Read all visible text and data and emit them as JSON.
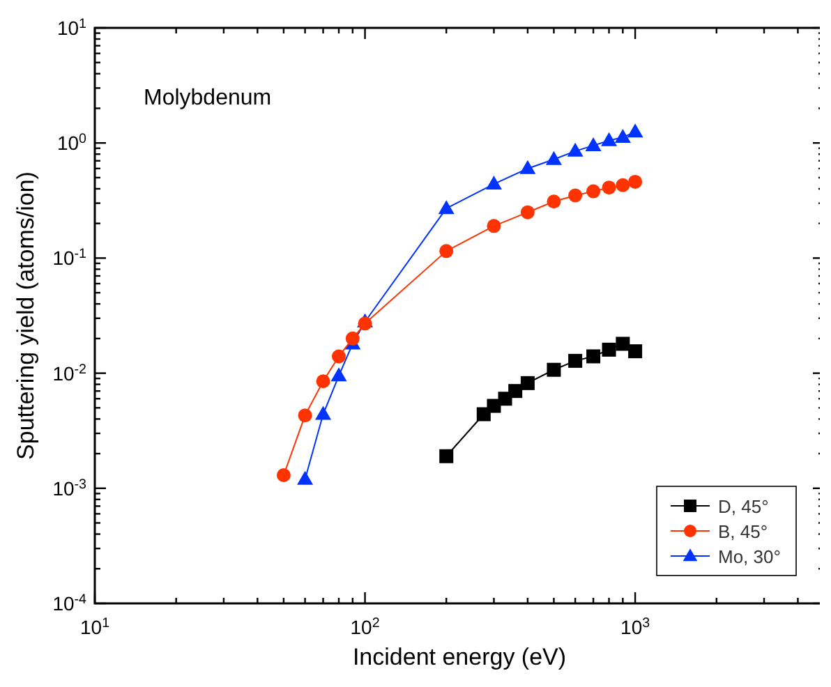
{
  "chart_data": {
    "type": "line",
    "xlabel": "Incident energy (eV)",
    "ylabel": "Sputtering yield (atoms/ion)",
    "annotations": [
      "Molybdenum"
    ],
    "log": "xy",
    "legend": "bottom right",
    "grid": false,
    "xlim": [
      10,
      5000
    ],
    "ylim": [
      0.0001,
      10
    ],
    "xticks": [
      {
        "value": 10,
        "label": "10$^{1}$"
      },
      {
        "value": 20,
        "label": null
      },
      {
        "value": 30,
        "label": null
      },
      {
        "value": 40,
        "label": null
      },
      {
        "value": 50,
        "label": null
      },
      {
        "value": 60,
        "label": null
      },
      {
        "value": 70,
        "label": null
      },
      {
        "value": 80,
        "label": null
      },
      {
        "value": 90,
        "label": null
      },
      {
        "value": 100,
        "label": "10$^{2}$"
      },
      {
        "value": 200,
        "label": null
      },
      {
        "value": 300,
        "label": null
      },
      {
        "value": 400,
        "label": null
      },
      {
        "value": 500,
        "label": null
      },
      {
        "value": 600,
        "label": null
      },
      {
        "value": 700,
        "label": null
      },
      {
        "value": 800,
        "label": null
      },
      {
        "value": 900,
        "label": null
      },
      {
        "value": 1000,
        "label": "10$^{3}$"
      },
      {
        "value": 2000,
        "label": null
      },
      {
        "value": 3000,
        "label": null
      },
      {
        "value": 4000,
        "label": null
      }
    ],
    "yticks": [
      {
        "value": 0.0001,
        "label": "10$^{-4}$"
      },
      {
        "value": 0.0002,
        "label": null
      },
      {
        "value": 0.0003,
        "label": null
      },
      {
        "value": 0.0004,
        "label": null
      },
      {
        "value": 0.0005,
        "label": null
      },
      {
        "value": 0.0006,
        "label": null
      },
      {
        "value": 0.0007,
        "label": null
      },
      {
        "value": 0.0008,
        "label": null
      },
      {
        "value": 0.0009,
        "label": null
      },
      {
        "value": 0.001,
        "label": "10$^{-3}$"
      },
      {
        "value": 0.002,
        "label": null
      },
      {
        "value": 0.003,
        "label": null
      },
      {
        "value": 0.004,
        "label": null
      },
      {
        "value": 0.005,
        "label": null
      },
      {
        "value": 0.006,
        "label": null
      },
      {
        "value": 0.007,
        "label": null
      },
      {
        "value": 0.008,
        "label": null
      },
      {
        "value": 0.009,
        "label": null
      },
      {
        "value": 0.01,
        "label": "10$^{-2}$"
      },
      {
        "value": 0.02,
        "label": null
      },
      {
        "value": 0.03,
        "label": null
      },
      {
        "value": 0.04,
        "label": null
      },
      {
        "value": 0.05,
        "label": null
      },
      {
        "value": 0.06,
        "label": null
      },
      {
        "value": 0.07,
        "label": null
      },
      {
        "value": 0.08,
        "label": null
      },
      {
        "value": 0.09,
        "label": null
      },
      {
        "value": 0.1,
        "label": "10$^{-1}$"
      },
      {
        "value": 0.2,
        "label": null
      },
      {
        "value": 0.3,
        "label": null
      },
      {
        "value": 0.4,
        "label": null
      },
      {
        "value": 0.5,
        "label": null
      },
      {
        "value": 0.6,
        "label": null
      },
      {
        "value": 0.7,
        "label": null
      },
      {
        "value": 0.8,
        "label": null
      },
      {
        "value": 0.9,
        "label": null
      },
      {
        "value": 1,
        "label": "10$^{0}$"
      },
      {
        "value": 2,
        "label": null
      },
      {
        "value": 3,
        "label": null
      },
      {
        "value": 4,
        "label": null
      },
      {
        "value": 5,
        "label": null
      },
      {
        "value": 6,
        "label": null
      },
      {
        "value": 7,
        "label": null
      },
      {
        "value": 8,
        "label": null
      },
      {
        "value": 9,
        "label": null
      },
      {
        "value": 10,
        "label": "10$^{1}$"
      }
    ],
    "series": [
      {
        "name": "D, 45°",
        "color": "#000000",
        "marker": "square",
        "x": [
          200,
          275,
          300,
          330,
          360,
          400,
          500,
          600,
          700,
          800,
          900,
          1000
        ],
        "values": [
          0.0019,
          0.0044,
          0.0052,
          0.006,
          0.007,
          0.0082,
          0.0107,
          0.0128,
          0.014,
          0.016,
          0.018,
          0.0155
        ]
      },
      {
        "name": "B, 45°",
        "color": "#ff3300",
        "marker": "circle",
        "x": [
          50,
          60,
          70,
          80,
          90,
          100,
          200,
          300,
          400,
          500,
          600,
          700,
          800,
          900,
          1000
        ],
        "values": [
          0.0013,
          0.0043,
          0.0085,
          0.014,
          0.02,
          0.027,
          0.115,
          0.19,
          0.25,
          0.31,
          0.35,
          0.38,
          0.41,
          0.43,
          0.46
        ]
      },
      {
        "name": "Mo, 30°",
        "color": "#0033ff",
        "marker": "triangle",
        "x": [
          60,
          70,
          80,
          90,
          100,
          200,
          300,
          400,
          500,
          600,
          700,
          800,
          900,
          1000
        ],
        "values": [
          0.0012,
          0.0044,
          0.0095,
          0.018,
          0.028,
          0.27,
          0.44,
          0.6,
          0.72,
          0.85,
          0.95,
          1.05,
          1.12,
          1.25
        ]
      }
    ]
  }
}
